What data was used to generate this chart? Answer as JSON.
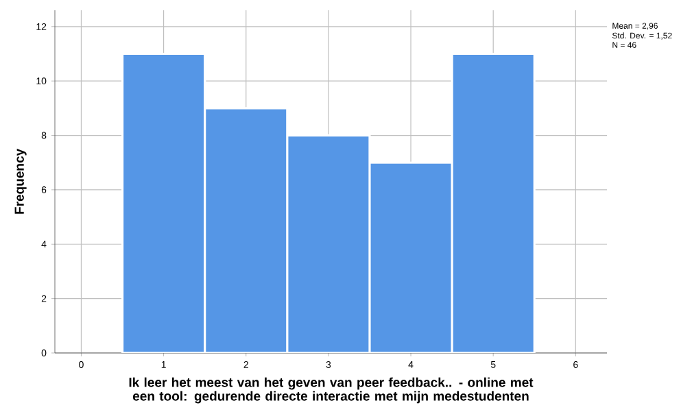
{
  "chart_data": {
    "type": "histogram",
    "xlabel": "Ik leer het meest van het geven van peer feedback.. - online met een tool: gedurende directe interactie met mijn medestudenten",
    "ylabel": "Frequency",
    "bins": [
      0.5,
      1.5,
      2.5,
      3.5,
      4.5,
      5.5
    ],
    "values": [
      11,
      9,
      8,
      7,
      11
    ],
    "color": "#5596e6",
    "xlim": [
      -0.32,
      6.38
    ],
    "ylim": [
      0,
      12.6
    ],
    "xticks": [
      0,
      1,
      2,
      3,
      4,
      5,
      6
    ],
    "yticks": [
      0,
      2,
      4,
      6,
      8,
      10,
      12
    ],
    "grid": true,
    "annotations": [
      "Mean = 2,96",
      "Std. Dev. = 1,52",
      "N = 46"
    ]
  }
}
